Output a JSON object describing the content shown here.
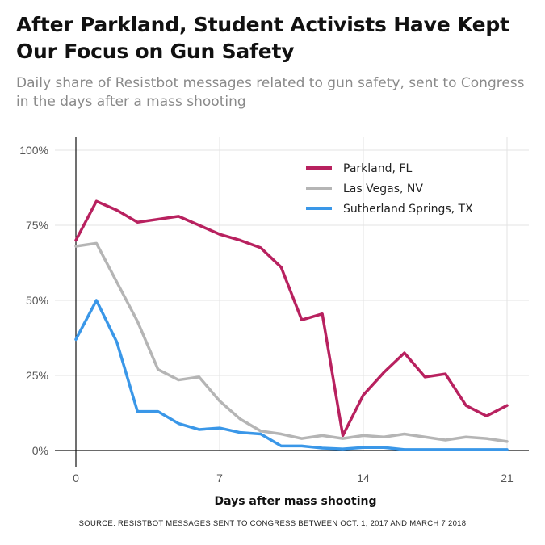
{
  "title": "After Parkland, Student Activists Have Kept Our Focus on Gun Safety",
  "subtitle": "Daily share of Resistbot messages related to gun safety, sent to Congress in the days after a mass shooting",
  "source": "SOURCE: RESISTBOT MESSAGES SENT TO CONGRESS BETWEEN OCT. 1, 2017 AND MARCH 7 2018",
  "chart_data": {
    "type": "line",
    "xlabel": "Days after mass shooting",
    "ylabel": "",
    "xlim": [
      0,
      22
    ],
    "ylim": [
      0,
      1.0
    ],
    "x_ticks": [
      0,
      7,
      14,
      21
    ],
    "x_tick_labels": [
      "0",
      "7",
      "14",
      "21"
    ],
    "y_ticks": [
      0,
      0.25,
      0.5,
      0.75,
      1.0
    ],
    "y_tick_labels": [
      "0%",
      "25%",
      "50%",
      "75%",
      "100%"
    ],
    "grid": true,
    "legend_position": "top-right",
    "x": [
      0,
      1,
      2,
      3,
      4,
      5,
      6,
      7,
      8,
      9,
      10,
      11,
      12,
      13,
      14,
      15,
      16,
      17,
      18,
      19,
      20,
      21
    ],
    "series": [
      {
        "name": "Parkland, FL",
        "color": "#b8215f",
        "values": [
          0.7,
          0.83,
          0.8,
          0.76,
          0.77,
          0.78,
          0.75,
          0.72,
          0.7,
          0.675,
          0.61,
          0.435,
          0.455,
          0.05,
          0.185,
          0.26,
          0.325,
          0.245,
          0.255,
          0.15,
          0.115,
          0.15
        ]
      },
      {
        "name": "Las Vegas, NV",
        "color": "#b5b5b5",
        "values": [
          0.68,
          0.69,
          0.56,
          0.43,
          0.27,
          0.235,
          0.245,
          0.165,
          0.105,
          0.065,
          0.055,
          0.04,
          0.05,
          0.04,
          0.05,
          0.045,
          0.055,
          0.045,
          0.035,
          0.045,
          0.04,
          0.03
        ]
      },
      {
        "name": "Sutherland Springs, TX",
        "color": "#3a97e8",
        "values": [
          0.37,
          0.5,
          0.36,
          0.13,
          0.13,
          0.09,
          0.07,
          0.075,
          0.06,
          0.055,
          0.015,
          0.015,
          0.008,
          0.005,
          0.01,
          0.01,
          0.003,
          0.003,
          0.003,
          0.003,
          0.003,
          0.003
        ]
      }
    ]
  }
}
